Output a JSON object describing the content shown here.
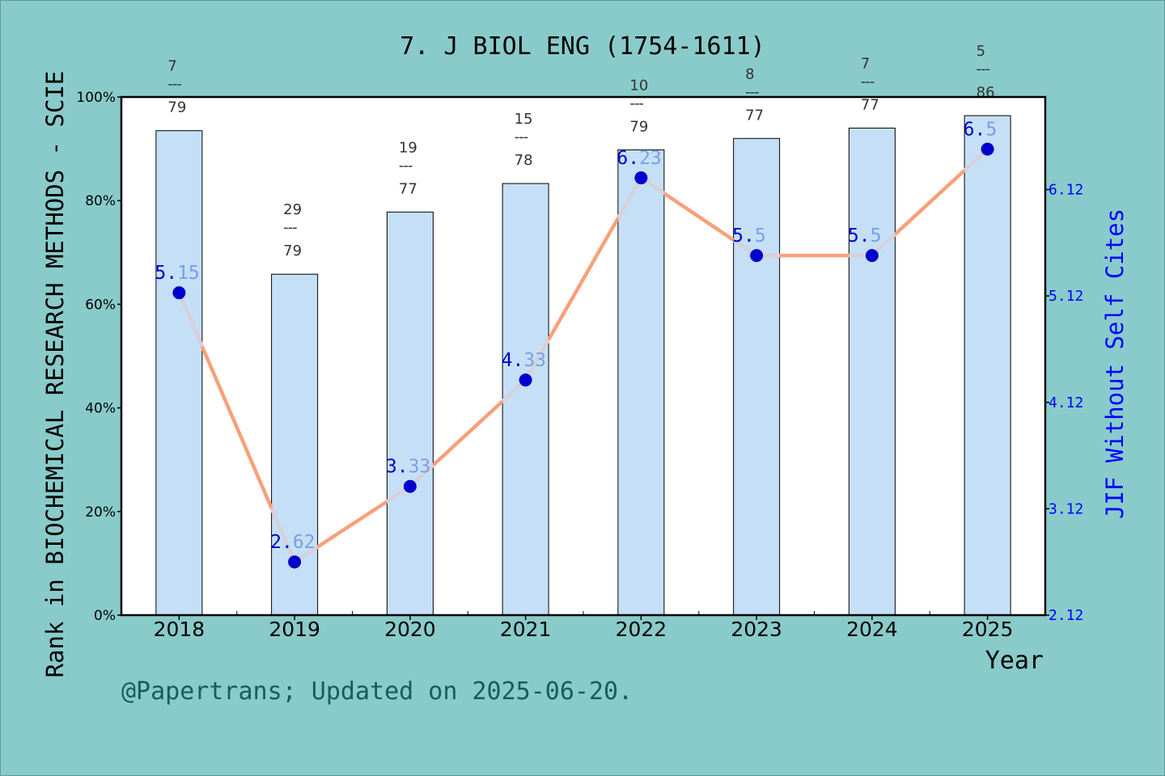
{
  "chart_data": {
    "type": "bar",
    "title": "7. J BIOL ENG (1754-1611)",
    "xlabel": "Year",
    "ylabel": "Rank in BIOCHEMICAL RESEARCH METHODS - SCIE",
    "y2label": "JIF Without Self Cites",
    "categories": [
      "2018",
      "2019",
      "2020",
      "2021",
      "2022",
      "2023",
      "2024",
      "2025"
    ],
    "ylim": [
      0,
      100
    ],
    "yticks": [
      "0%",
      "20%",
      "40%",
      "60%",
      "80%",
      "100%"
    ],
    "y2lim": [
      2.12,
      6.99
    ],
    "y2ticks": [
      "2.12",
      "3.12",
      "4.12",
      "5.12",
      "6.12"
    ],
    "grid": false,
    "series": [
      {
        "kind": "bar",
        "values": [
          93.5,
          65.8,
          77.8,
          83.3,
          89.8,
          92.0,
          94.0,
          96.4
        ],
        "color": "#c5e0f6"
      },
      {
        "kind": "line",
        "values": [
          5.15,
          2.62,
          3.33,
          4.33,
          6.23,
          5.5,
          5.5,
          6.5
        ],
        "labels": [
          "5.15",
          "2.62",
          "3.33",
          "4.33",
          "6.23",
          "5.5",
          "5.5",
          "6.5"
        ],
        "color": "#f9a07a",
        "marker_color": "#0000cc"
      }
    ],
    "rank_labels": [
      {
        "rank": "7",
        "total": "79"
      },
      {
        "rank": "29",
        "total": "79"
      },
      {
        "rank": "19",
        "total": "77"
      },
      {
        "rank": "15",
        "total": "78"
      },
      {
        "rank": "10",
        "total": "79"
      },
      {
        "rank": "8",
        "total": "77"
      },
      {
        "rank": "7",
        "total": "77"
      },
      {
        "rank": "5",
        "total": "86"
      }
    ],
    "rank_dashes": "---"
  },
  "footer": "@Papertrans; Updated on 2025-06-20."
}
